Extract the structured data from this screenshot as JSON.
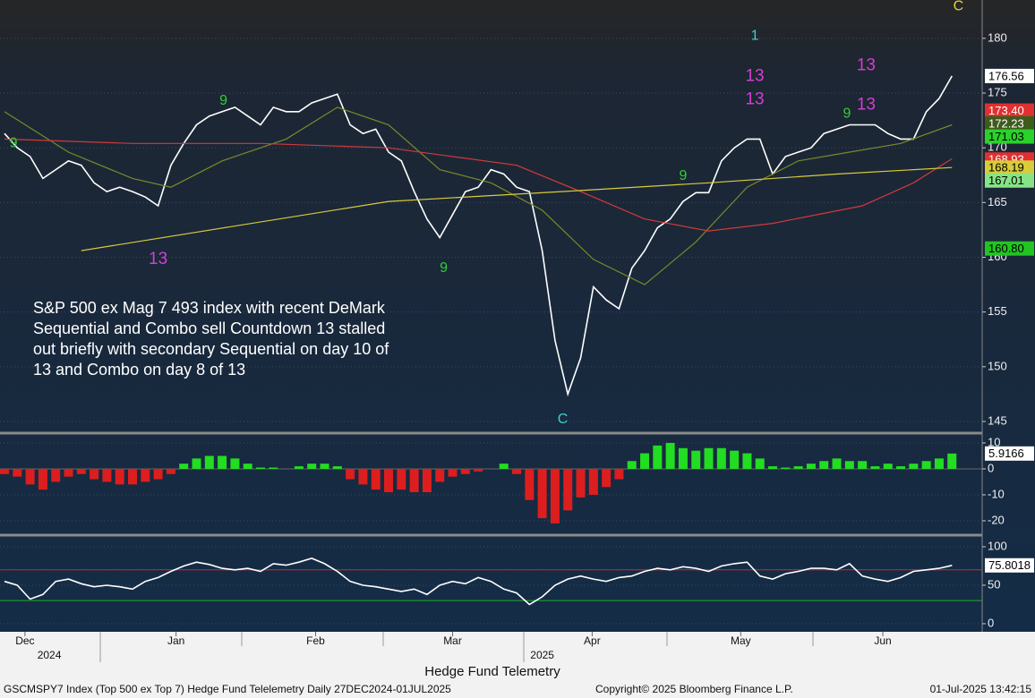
{
  "chart_data": [
    {
      "type": "line",
      "note": [
        "S&P 500 ex Mag 7 493 index with recent DeMark",
        "Sequential and Combo sell Countdown 13 stalled",
        "out briefly with secondary Sequential on day 10 of",
        "13 and Combo on day 8 of 13"
      ],
      "ylim": [
        144.1,
        183.5
      ],
      "yticks": [
        145,
        150,
        155,
        160,
        165,
        170,
        175,
        180
      ],
      "grid": true,
      "series": [
        {
          "color": "#ffffff",
          "values": [
            171.3,
            170,
            169.2,
            167.2,
            168,
            168.8,
            168.4,
            166.8,
            166,
            166.4,
            166,
            165.5,
            164.7,
            168.4,
            170.4,
            172.1,
            172.9,
            173.3,
            173.7,
            172.9,
            172.1,
            173.7,
            173.3,
            173.3,
            174.1,
            174.5,
            174.9,
            172.1,
            171.3,
            171.7,
            169.6,
            168.8,
            166,
            163.5,
            161.8,
            163.9,
            166,
            166.4,
            168,
            167.6,
            166.4,
            166,
            160.6,
            152.4,
            147.5,
            150.8,
            157.3,
            156.1,
            155.3,
            159,
            160.6,
            162.7,
            163.5,
            165.1,
            165.9,
            165.9,
            168.8,
            170,
            170.8,
            170.8,
            167.6,
            169.2,
            169.6,
            170,
            171.3,
            171.7,
            172.1,
            172.1,
            172.1,
            171.3,
            170.8,
            170.8,
            173.3,
            174.5,
            176.56
          ]
        },
        {
          "color": "#7a8a2a",
          "x": [
            0,
            5,
            10,
            13,
            17,
            22,
            26,
            30,
            34,
            38,
            42,
            46,
            50,
            54,
            58,
            62,
            66,
            70,
            74
          ],
          "values": [
            173.3,
            169.6,
            167.2,
            166.4,
            168.8,
            170.8,
            173.7,
            172.1,
            168,
            166.8,
            164.3,
            159.8,
            157.5,
            161.4,
            166.4,
            168.8,
            169.6,
            170.4,
            172.1
          ]
        },
        {
          "color": "#d23a3a",
          "x": [
            0,
            10,
            20,
            30,
            40,
            45,
            50,
            55,
            60,
            67,
            71,
            74
          ],
          "values": [
            170.8,
            170.4,
            170.4,
            170,
            168.4,
            166,
            163.5,
            162.4,
            163.1,
            164.7,
            166.8,
            169
          ]
        },
        {
          "color": "#d8cc3a",
          "x": [
            6,
            30,
            45,
            55,
            65,
            74
          ],
          "values": [
            160.6,
            165.1,
            166.1,
            166.8,
            167.6,
            168.2
          ]
        }
      ],
      "annotations": [
        {
          "text": "13",
          "x": 12,
          "y": 159.8,
          "color": "#d040d0"
        },
        {
          "text": "9",
          "x": 34.3,
          "y": 159,
          "color": "#30d030"
        },
        {
          "text": "9",
          "x": 0.7,
          "y": 170.4,
          "color": "#30d030"
        },
        {
          "text": "9",
          "x": 17.1,
          "y": 174.3,
          "color": "#30d030"
        },
        {
          "text": "13",
          "x": 58.6,
          "y": 176.5,
          "color": "#d040d0"
        },
        {
          "text": "13",
          "x": 58.6,
          "y": 174.4,
          "color": "#d040d0"
        },
        {
          "text": "1",
          "x": 58.6,
          "y": 180.2,
          "color": "#3ad0d0"
        },
        {
          "text": "9",
          "x": 53,
          "y": 167.4,
          "color": "#30d030"
        },
        {
          "text": "13",
          "x": 67.3,
          "y": 177.5,
          "color": "#d040d0"
        },
        {
          "text": "13",
          "x": 67.3,
          "y": 173.9,
          "color": "#d040d0"
        },
        {
          "text": "9",
          "x": 65.8,
          "y": 173.1,
          "color": "#30d030"
        },
        {
          "text": "C",
          "x": 74.5,
          "y": 182.9,
          "color": "#e0d040"
        },
        {
          "text": "C",
          "x": 43.6,
          "y": 145.2,
          "color": "#3ad0d0"
        }
      ],
      "last_labels": [
        {
          "value": 176.56,
          "label": "176.56",
          "color": "#ffffff",
          "text_color": "#000000"
        },
        {
          "value": 173.4,
          "label": "173.40",
          "color": "#e03030",
          "text_color": "#ffffff"
        },
        {
          "value": 172.23,
          "label": "172.23",
          "color": "#3d5c1c",
          "text_color": "#ffffff"
        },
        {
          "value": 171.03,
          "label": "171.03",
          "color": "#2bd12b",
          "text_color": "#000000"
        },
        {
          "value": 168.93,
          "label": "168.93",
          "color": "#e03030",
          "text_color": "#ffffff"
        },
        {
          "value": 168.19,
          "label": "168.19",
          "color": "#d8cc3a",
          "text_color": "#000000"
        },
        {
          "value": 167.01,
          "label": "167.01",
          "color": "#86e486",
          "text_color": "#000000"
        },
        {
          "value": 160.8,
          "label": "160.80",
          "color": "#22c422",
          "text_color": "#000000"
        }
      ]
    },
    {
      "type": "bar",
      "pos_color": "#22dd22",
      "neg_color": "#dd1e1e",
      "ylim": [
        -24.5,
        12.4
      ],
      "yticks": [
        10,
        0,
        -10,
        -20
      ],
      "grid": true,
      "values": [
        -2,
        -3,
        -6,
        -8,
        -5,
        -3,
        -2,
        -4,
        -5,
        -6,
        -6,
        -5,
        -4,
        -2,
        2,
        4,
        5,
        5,
        4,
        2,
        0.5,
        0.5,
        0,
        1,
        2,
        2,
        1,
        -4,
        -6,
        -8,
        -9,
        -8,
        -9,
        -9,
        -5,
        -3,
        -2,
        -1,
        0,
        2,
        -2,
        -12,
        -19,
        -21,
        -16,
        -11,
        -10,
        -7,
        -4,
        3,
        6,
        9,
        10,
        8,
        7,
        8,
        8,
        7,
        6,
        4,
        1,
        0.5,
        1,
        2,
        3,
        4,
        3,
        3,
        1,
        2,
        1,
        2,
        3,
        4,
        5.9166
      ],
      "last_labels": [
        {
          "value": 5.9166,
          "label": "5.9166",
          "color": "#ffffff",
          "text_color": "#000000"
        }
      ]
    },
    {
      "type": "line",
      "xlabel": "Hedge Fund Telemetry",
      "ylim": [
        -10.5,
        111.6
      ],
      "yticks": [
        100,
        50,
        0
      ],
      "grid": true,
      "xlim": [
        -0.35,
        76.36
      ],
      "xticks": [
        {
          "value": 1.6,
          "label": "Dec"
        },
        {
          "value": 13.4,
          "label": "Jan"
        },
        {
          "value": 24.3,
          "label": "Feb"
        },
        {
          "value": 35,
          "label": "Mar"
        },
        {
          "value": 45.9,
          "label": "Apr"
        },
        {
          "value": 57.5,
          "label": "May"
        },
        {
          "value": 68.6,
          "label": "Jun"
        }
      ],
      "years": [
        {
          "value": 3.5,
          "label": "2024"
        },
        {
          "value": 42,
          "label": "2025"
        }
      ],
      "reference_lines": [
        {
          "value": 70,
          "color": "#d02a2a"
        },
        {
          "value": 30,
          "color": "#22b022"
        }
      ],
      "series": [
        {
          "color": "#ffffff",
          "values": [
            55,
            50,
            32,
            38,
            55,
            58,
            52,
            48,
            50,
            48,
            45,
            55,
            60,
            68,
            75,
            80,
            77,
            72,
            70,
            72,
            68,
            78,
            76,
            80,
            85,
            78,
            68,
            55,
            50,
            48,
            45,
            42,
            45,
            38,
            50,
            55,
            52,
            60,
            55,
            45,
            40,
            25,
            35,
            50,
            58,
            62,
            58,
            55,
            60,
            62,
            68,
            72,
            70,
            74,
            72,
            68,
            75,
            78,
            80,
            62,
            58,
            65,
            68,
            72,
            72,
            70,
            78,
            62,
            58,
            55,
            60,
            68,
            70,
            72,
            75.8018
          ]
        }
      ],
      "last_labels": [
        {
          "value": 75.8018,
          "label": "75.8018",
          "color": "#ffffff",
          "text_color": "#000000"
        }
      ]
    }
  ],
  "footer": {
    "left": "GSCMSPY7 Index (Top 500 ex Top 7) Hedge Fund Telelemetry  Daily 27DEC2024-01JUL2025",
    "copyright": "Copyright© 2025 Bloomberg Finance L.P.",
    "timestamp": "01-Jul-2025 13:42:15"
  }
}
